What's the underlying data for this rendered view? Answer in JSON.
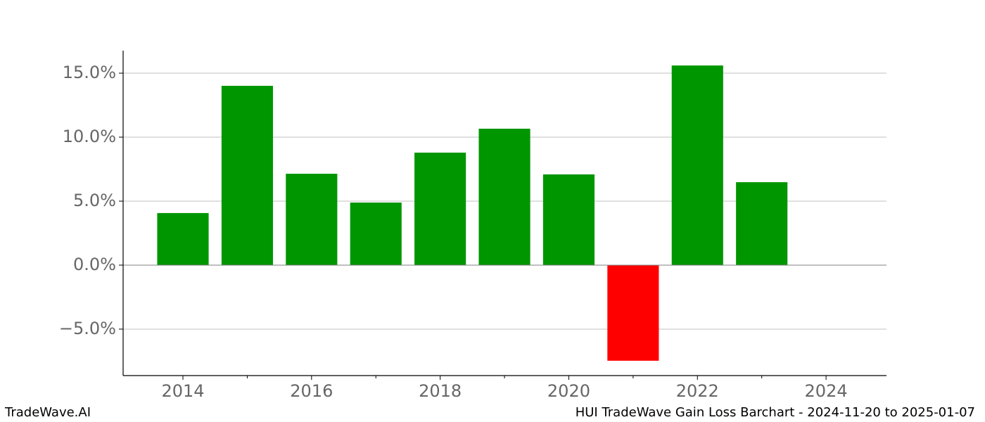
{
  "chart_data": {
    "type": "bar",
    "x": [
      2014,
      2015,
      2016,
      2017,
      2018,
      2019,
      2020,
      2021,
      2022,
      2023
    ],
    "values": [
      4.07,
      14.01,
      7.14,
      4.89,
      8.79,
      10.66,
      7.09,
      -7.47,
      15.6,
      6.48
    ],
    "colors": [
      "#009600",
      "#009600",
      "#009600",
      "#009600",
      "#009600",
      "#009600",
      "#009600",
      "#ff0000",
      "#009600",
      "#009600"
    ],
    "xlim": [
      2013.07,
      2024.94
    ],
    "xticks": [
      2014,
      2016,
      2018,
      2020,
      2022,
      2024
    ],
    "xminorticks": [
      2015,
      2017,
      2019,
      2021,
      2023
    ],
    "ylim": [
      -8.63,
      16.76
    ],
    "yticks": [
      {
        "value": -5,
        "label": "−5.0%"
      },
      {
        "value": 0,
        "label": "0.0%"
      },
      {
        "value": 5,
        "label": "5.0%"
      },
      {
        "value": 10,
        "label": "10.0%"
      },
      {
        "value": 15,
        "label": "15.0%"
      }
    ],
    "grid": true
  },
  "footer": {
    "left": "TradeWave.AI",
    "right": "HUI TradeWave Gain Loss Barchart - 2024-11-20 to 2025-01-07"
  }
}
